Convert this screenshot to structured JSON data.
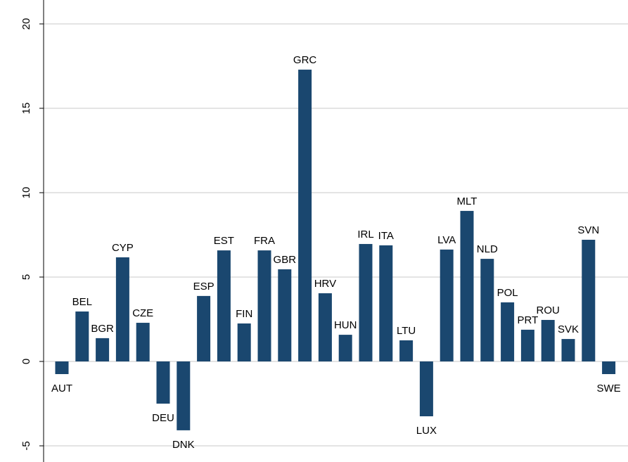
{
  "chart_data": {
    "type": "bar",
    "categories": [
      "AUT",
      "BEL",
      "BGR",
      "CYP",
      "CZE",
      "DEU",
      "DNK",
      "ESP",
      "EST",
      "FIN",
      "FRA",
      "GBR",
      "GRC",
      "HRV",
      "HUN",
      "IRL",
      "ITA",
      "LTU",
      "LUX",
      "LVA",
      "MLT",
      "NLD",
      "POL",
      "PRT",
      "ROU",
      "SVK",
      "SVN",
      "SWE"
    ],
    "values": [
      -0.75,
      2.96,
      1.38,
      6.17,
      2.29,
      -2.5,
      -4.08,
      3.88,
      6.58,
      2.25,
      6.58,
      5.46,
      17.29,
      4.04,
      1.58,
      6.96,
      6.88,
      1.25,
      -3.25,
      6.63,
      8.92,
      6.08,
      3.5,
      1.88,
      2.46,
      1.33,
      7.21,
      -0.75
    ],
    "color": "#1a476f",
    "ylim": [
      -6,
      21.25
    ],
    "yticks": [
      -5,
      0,
      5,
      10,
      15,
      20
    ],
    "grid": true
  }
}
